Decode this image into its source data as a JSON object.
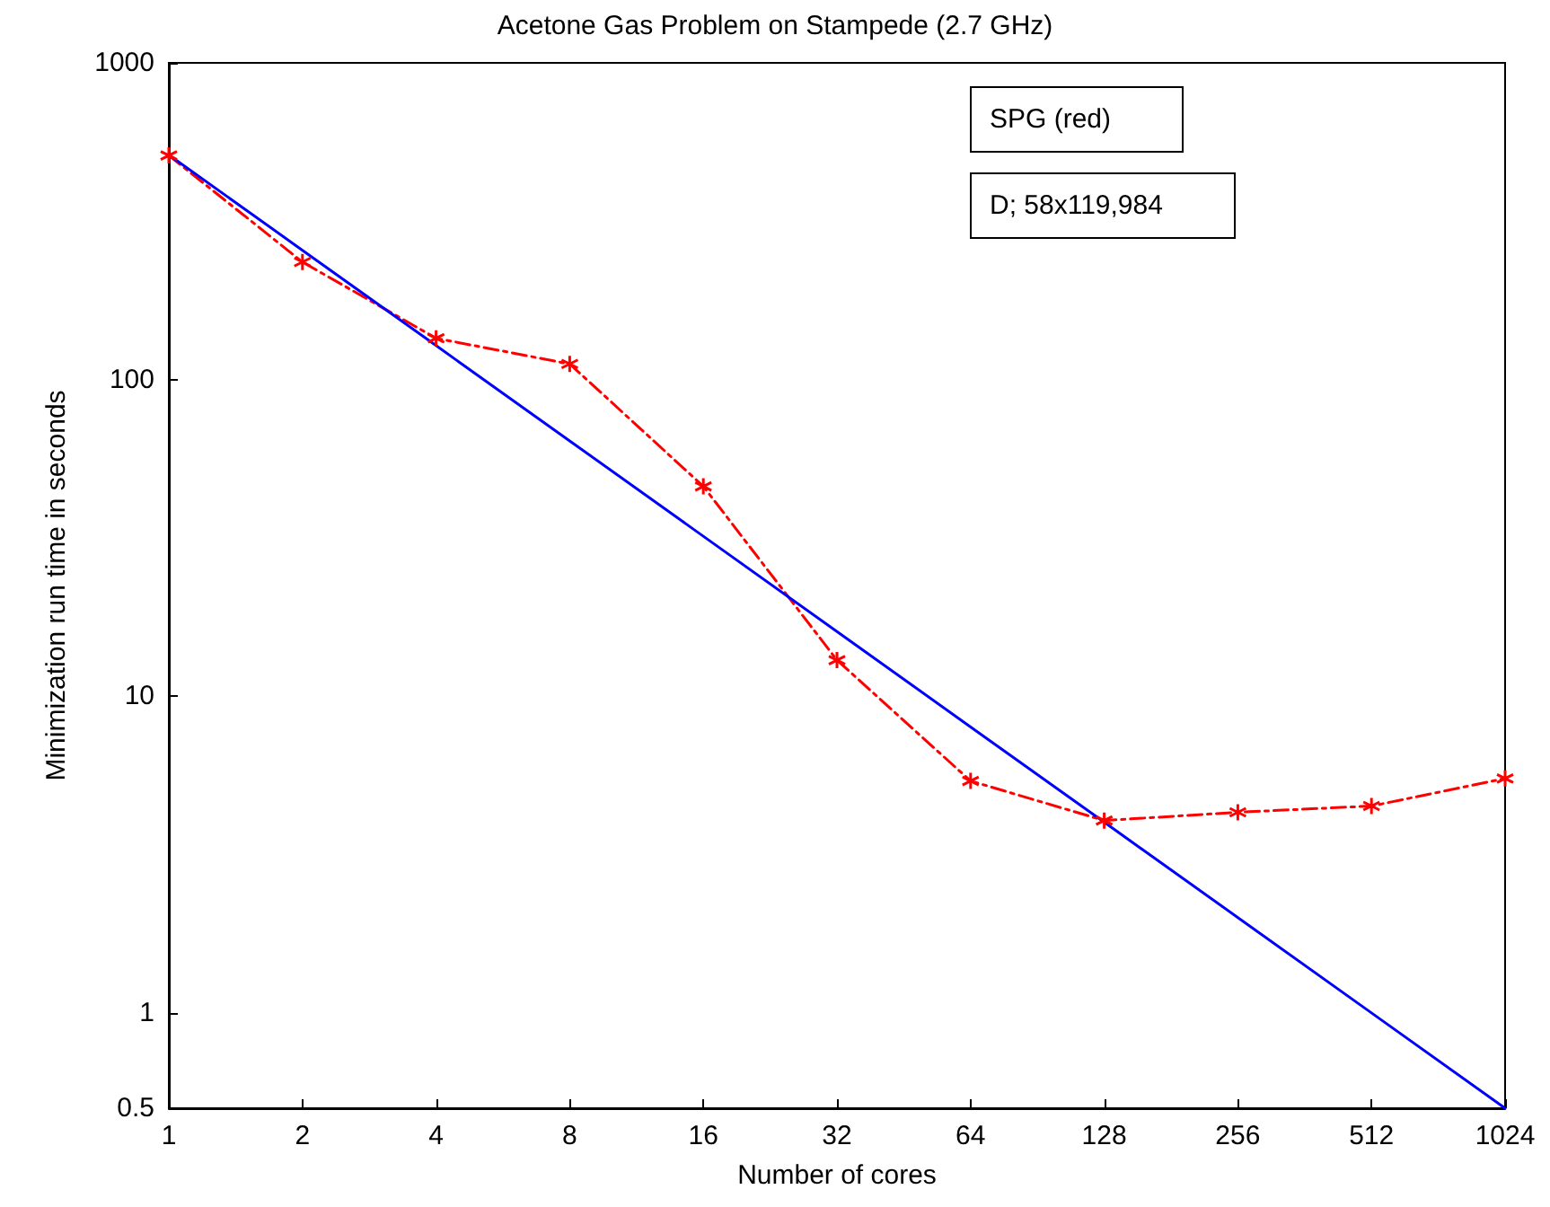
{
  "chart_data": {
    "type": "line",
    "title": "Acetone Gas Problem on Stampede (2.7 GHz)",
    "xlabel": "Number of cores",
    "ylabel": "Minimization run time in seconds",
    "categories": [
      "1",
      "2",
      "4",
      "8",
      "16",
      "32",
      "64",
      "128",
      "256",
      "512",
      "1024"
    ],
    "series": [
      {
        "color": "#ff0000",
        "marker": "cross",
        "line_style": "dashed",
        "values": [
          510,
          235,
          135,
          112,
          46,
          13,
          5.4,
          4.05,
          4.3,
          4.5,
          5.5
        ]
      },
      {
        "color": "#0000ff",
        "marker": "none",
        "line_style": "solid",
        "values": [
          512,
          256,
          128,
          64,
          32,
          16,
          8,
          4,
          2,
          1,
          0.5
        ]
      }
    ],
    "log": "y",
    "ylim": [
      0.5,
      1000
    ],
    "yticks": [
      0.5,
      1,
      10,
      100,
      1000
    ],
    "grid": false,
    "annotations": [
      "SPG (red)",
      "D; 58x119,984"
    ]
  }
}
